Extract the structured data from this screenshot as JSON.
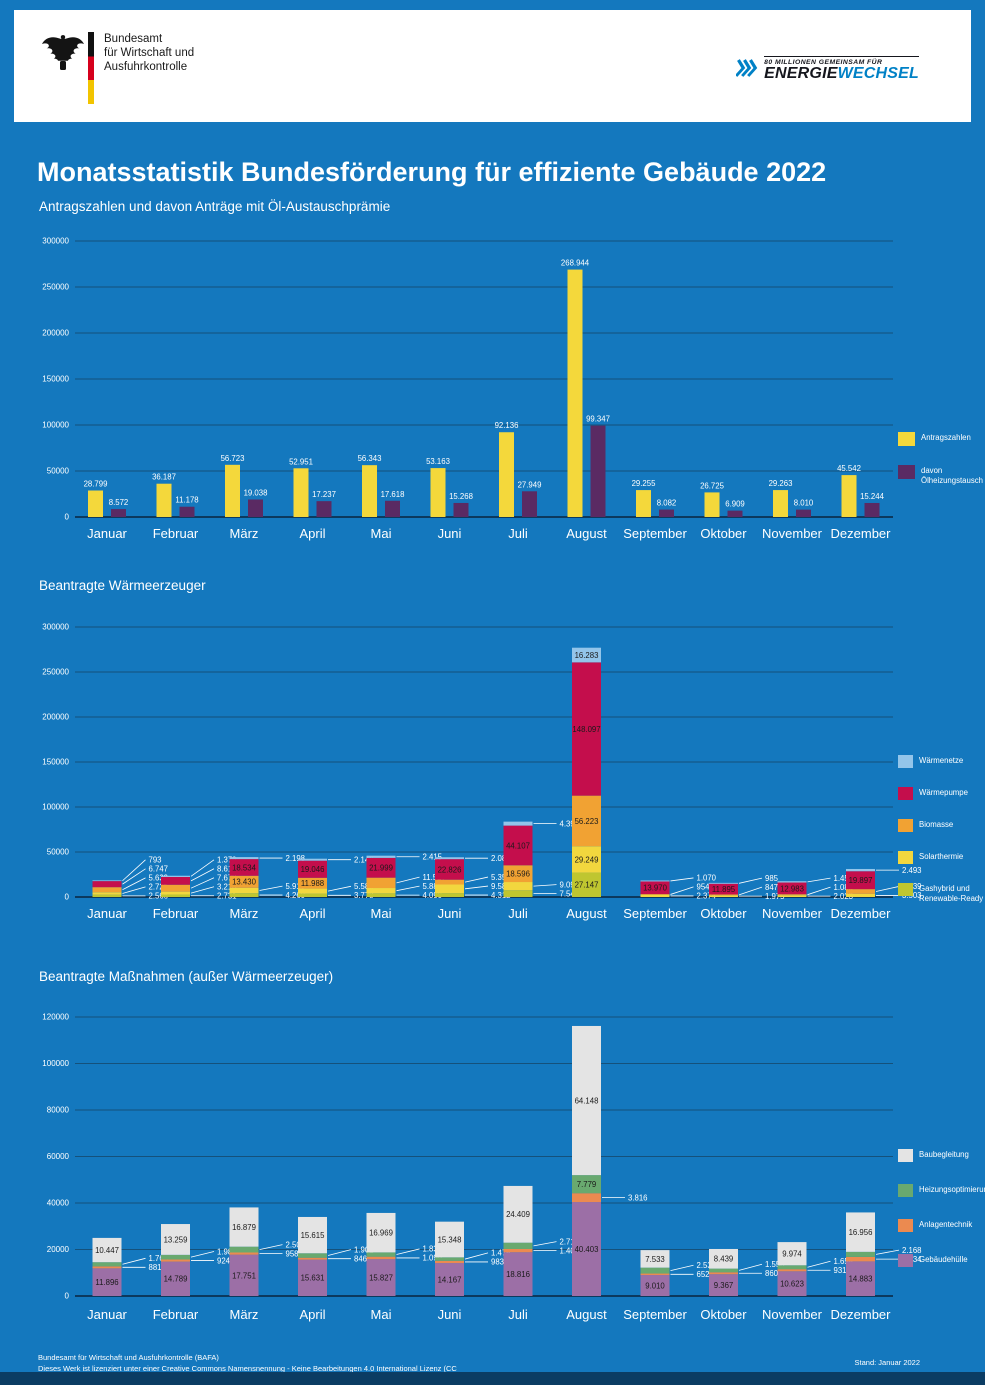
{
  "title": "Monatsstatistik Bundesförderung für effiziente Gebäude 2022",
  "colors": {
    "background": "#1478BE",
    "grid": "#15517B",
    "baseline": "#0B3050",
    "footer_bar": "#0B3C63",
    "text": "#FFFFFF",
    "accent_blue": "#0081C6"
  },
  "header": {
    "bafa_line1": "Bundesamt",
    "bafa_line2": "für Wirtschaft und",
    "bafa_line3": "Ausfuhrkontrolle",
    "ew_tagline": "80 MILLIONEN GEMEINSAM FÜR",
    "ew_brand_dark": "ENERGIE",
    "ew_brand_blue": "WECHSEL"
  },
  "months": [
    "Januar",
    "Februar",
    "März",
    "April",
    "Mai",
    "Juni",
    "Juli",
    "August",
    "September",
    "Oktober",
    "November",
    "Dezember"
  ],
  "chart_data": [
    {
      "type": "bar",
      "stacked": false,
      "title": "Antragszahlen und davon Anträge mit Öl-Austauschprämie",
      "categories": [
        "Januar",
        "Februar",
        "März",
        "April",
        "Mai",
        "Juni",
        "Juli",
        "August",
        "September",
        "Oktober",
        "November",
        "Dezember"
      ],
      "ylim": [
        0,
        300000
      ],
      "yticks": [
        0,
        50000,
        100000,
        150000,
        200000,
        250000,
        300000
      ],
      "grid": true,
      "legend_position": "right",
      "series": [
        {
          "name": "Antragszahlen",
          "color": "#F4D83B",
          "values": [
            28799,
            36187,
            56723,
            52951,
            56343,
            53163,
            92136,
            268944,
            29255,
            26725,
            29263,
            45542
          ]
        },
        {
          "name": "davon Ölheizungstausch",
          "color": "#5A2A63",
          "values": [
            8572,
            11178,
            19038,
            17237,
            17618,
            15268,
            27949,
            99347,
            8082,
            6909,
            8010,
            15244
          ]
        }
      ]
    },
    {
      "type": "bar",
      "stacked": true,
      "title": "Beantragte Wärmeerzeuger",
      "categories": [
        "Januar",
        "Februar",
        "März",
        "April",
        "Mai",
        "Juni",
        "Juli",
        "August",
        "September",
        "Oktober",
        "November",
        "Dezember"
      ],
      "ylim": [
        0,
        300000
      ],
      "yticks": [
        0,
        50000,
        100000,
        150000,
        200000,
        250000,
        300000
      ],
      "grid": true,
      "legend_position": "right",
      "series": [
        {
          "name": "Wärmenetze",
          "color": "#93C5EA",
          "values": [
            793,
            1379,
            2198,
            2146,
            2415,
            2085,
            4393,
            16283,
            1070,
            985,
            1452,
            2493
          ]
        },
        {
          "name": "Wärmepumpe",
          "color": "#C40E4C",
          "values": [
            6747,
            8614,
            18534,
            19046,
            21999,
            22826,
            44107,
            148097,
            13970,
            11895,
            12983,
            19897
          ]
        },
        {
          "name": "Biomasse",
          "color": "#F1A233",
          "values": [
            5639,
            7678,
            13430,
            11988,
            11527,
            5357,
            18596,
            56223,
            954,
            847,
            1088,
            5239
          ]
        },
        {
          "name": "Solarthermie",
          "color": "#F2D73E",
          "values": [
            2721,
            3218,
            5919,
            5580,
            5880,
            9586,
            9097,
            29249,
            2374,
            1975,
            2023,
            3503
          ]
        },
        {
          "name": "Gashybrid und Renewable-Ready",
          "color": "#BFC630",
          "values": [
            2566,
            2731,
            4260,
            3778,
            4090,
            4312,
            7541,
            27147,
            null,
            null,
            null,
            null
          ]
        }
      ]
    },
    {
      "type": "bar",
      "stacked": true,
      "title": "Beantragte Maßnahmen (außer Wärmeerzeuger)",
      "categories": [
        "Januar",
        "Februar",
        "März",
        "April",
        "Mai",
        "Juni",
        "Juli",
        "August",
        "September",
        "Oktober",
        "November",
        "Dezember"
      ],
      "ylim": [
        0,
        120000
      ],
      "yticks": [
        0,
        20000,
        40000,
        60000,
        80000,
        100000,
        120000
      ],
      "grid": true,
      "legend_position": "right",
      "series": [
        {
          "name": "Baubegleitung",
          "color": "#E4E4E4",
          "values": [
            10447,
            13259,
            16879,
            15615,
            16969,
            15348,
            24409,
            64148,
            7533,
            8439,
            9974,
            16956
          ]
        },
        {
          "name": "Heizungsoptimierung",
          "color": "#69A96F",
          "values": [
            1763,
            1981,
            2507,
            1901,
            1831,
            1476,
            2711,
            7779,
            2538,
            1556,
            1655,
            2168
          ]
        },
        {
          "name": "Anlagentechnik",
          "color": "#EB8A50",
          "values": [
            881,
            924,
            958,
            846,
            1099,
            983,
            1406,
            3816,
            652,
            860,
            931,
            1934
          ]
        },
        {
          "name": "Gebäudehülle",
          "color": "#9C6FA6",
          "values": [
            11896,
            14789,
            17751,
            15631,
            15827,
            14167,
            18816,
            40403,
            9010,
            9367,
            10623,
            14883
          ]
        }
      ]
    }
  ],
  "footer": {
    "line1": "Bundesamt für Wirtschaft und Ausfuhrkontrolle (BAFA)",
    "line2": "Dieses Werk ist lizenziert unter einer Creative Commons Namensnennung - Keine Bearbeitungen 4.0 International Lizenz (CC",
    "stand": "Stand: Januar 2022"
  }
}
